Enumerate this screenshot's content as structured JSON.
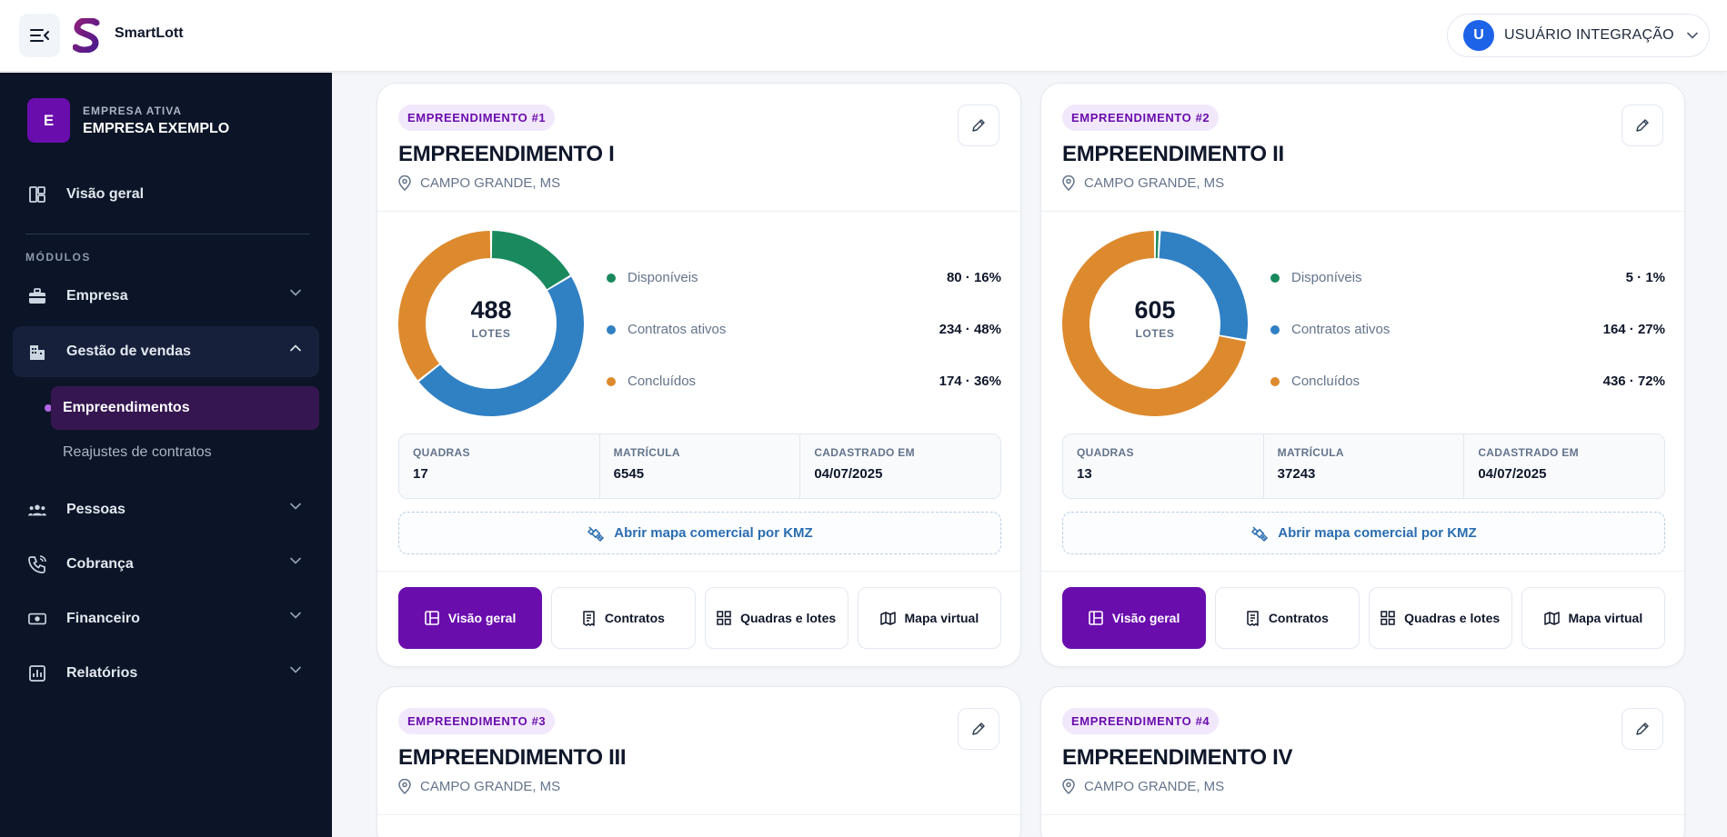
{
  "header": {
    "brand": "SmartLott",
    "user_initial": "U",
    "user_name": "USUÁRIO INTEGRAÇÃO"
  },
  "sidebar": {
    "company_label": "EMPRESA ATIVA",
    "company_initial": "E",
    "company_name": "EMPRESA EXEMPLO",
    "overview": "Visão geral",
    "modules_label": "MÓDULOS",
    "items": [
      {
        "label": "Empresa",
        "icon": "briefcase-icon"
      },
      {
        "label": "Gestão de vendas",
        "icon": "building-icon",
        "open": true
      },
      {
        "label": "Pessoas",
        "icon": "people-icon"
      },
      {
        "label": "Cobrança",
        "icon": "phone-icon"
      },
      {
        "label": "Financeiro",
        "icon": "money-icon"
      },
      {
        "label": "Relatórios",
        "icon": "report-icon"
      }
    ],
    "subitems": [
      {
        "label": "Empreendimentos",
        "active": true
      },
      {
        "label": "Reajustes de contratos",
        "active": false
      }
    ]
  },
  "colors": {
    "accent": "#6a0dad",
    "available": "#1a8a5e",
    "active_contracts": "#3080c4",
    "completed": "#dd8a2e"
  },
  "cards": [
    {
      "badge": "EMPREENDIMENTO #1",
      "title": "EMPREENDIMENTO I",
      "location": "CAMPO GRANDE, MS",
      "total": "488",
      "total_label": "LOTES",
      "legend": [
        {
          "name": "Disponíveis",
          "value": "80 · 16%",
          "count": 80
        },
        {
          "name": "Contratos ativos",
          "value": "234 · 48%",
          "count": 234
        },
        {
          "name": "Concluídos",
          "value": "174 · 36%",
          "count": 174
        }
      ],
      "stats": [
        {
          "label": "QUADRAS",
          "value": "17"
        },
        {
          "label": "MATRÍCULA",
          "value": "6545"
        },
        {
          "label": "CADASTRADO EM",
          "value": "04/07/2025"
        }
      ],
      "kmz_label": "Abrir mapa comercial por KMZ",
      "actions": [
        "Visão geral",
        "Contratos",
        "Quadras e lotes",
        "Mapa virtual"
      ]
    },
    {
      "badge": "EMPREENDIMENTO #2",
      "title": "EMPREENDIMENTO II",
      "location": "CAMPO GRANDE, MS",
      "total": "605",
      "total_label": "LOTES",
      "legend": [
        {
          "name": "Disponíveis",
          "value": "5 · 1%",
          "count": 5
        },
        {
          "name": "Contratos ativos",
          "value": "164 · 27%",
          "count": 164
        },
        {
          "name": "Concluídos",
          "value": "436 · 72%",
          "count": 436
        }
      ],
      "stats": [
        {
          "label": "QUADRAS",
          "value": "13"
        },
        {
          "label": "MATRÍCULA",
          "value": "37243"
        },
        {
          "label": "CADASTRADO EM",
          "value": "04/07/2025"
        }
      ],
      "kmz_label": "Abrir mapa comercial por KMZ",
      "actions": [
        "Visão geral",
        "Contratos",
        "Quadras e lotes",
        "Mapa virtual"
      ]
    },
    {
      "badge": "EMPREENDIMENTO #3",
      "title": "EMPREENDIMENTO III",
      "location": "CAMPO GRANDE, MS"
    },
    {
      "badge": "EMPREENDIMENTO #4",
      "title": "EMPREENDIMENTO IV",
      "location": "CAMPO GRANDE, MS"
    }
  ]
}
